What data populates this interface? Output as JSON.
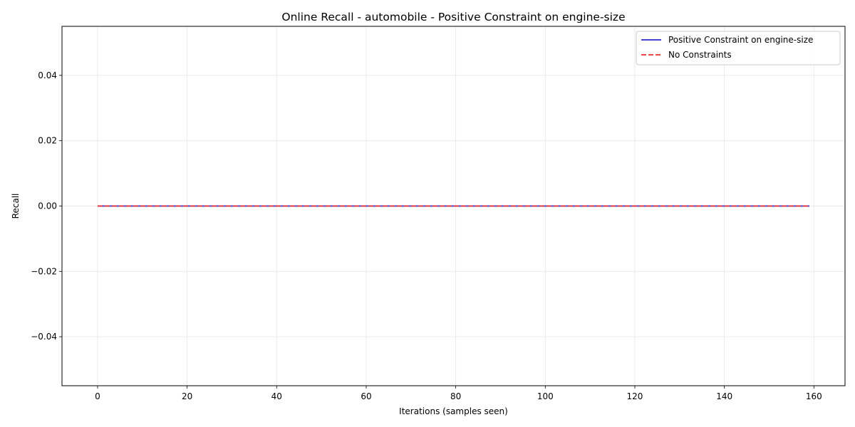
{
  "chart_data": {
    "type": "line",
    "title": "Online Recall - automobile - Positive Constraint on engine-size",
    "xlabel": "Iterations (samples seen)",
    "ylabel": "Recall",
    "xlim": [
      -7.95,
      166.95
    ],
    "ylim": [
      -0.055,
      0.055
    ],
    "xticks": [
      0,
      20,
      40,
      60,
      80,
      100,
      120,
      140,
      160
    ],
    "yticks": [
      -0.04,
      -0.02,
      0.0,
      0.02,
      0.04
    ],
    "xtick_labels": [
      "0",
      "20",
      "40",
      "60",
      "80",
      "100",
      "120",
      "140",
      "160"
    ],
    "ytick_labels": [
      "−0.04",
      "−0.02",
      "0.00",
      "0.02",
      "0.04"
    ],
    "grid": true,
    "legend_position": "top-right",
    "series": [
      {
        "name": "Positive Constraint on engine-size",
        "color": "#3333dd",
        "style": "solid",
        "x_range": [
          0,
          159
        ],
        "value": 0.0
      },
      {
        "name": "No Constraints",
        "color": "#ee3333",
        "style": "dashed",
        "x_range": [
          0,
          159
        ],
        "value": 0.0
      }
    ]
  }
}
